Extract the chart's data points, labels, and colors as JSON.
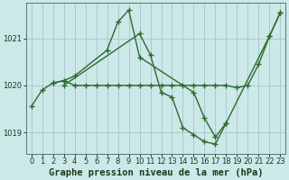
{
  "bg_color": "#cce8e8",
  "grid_color": "#aacccc",
  "line_color": "#2d6a2d",
  "marker": "+",
  "markersize": 5,
  "linewidth": 1.0,
  "title": "Graphe pression niveau de la mer (hPa)",
  "title_fontsize": 7.5,
  "xlim": [
    -0.5,
    23.5
  ],
  "ylim": [
    1018.55,
    1021.75
  ],
  "yticks": [
    1019,
    1020,
    1021
  ],
  "xticks": [
    0,
    1,
    2,
    3,
    4,
    5,
    6,
    7,
    8,
    9,
    10,
    11,
    12,
    13,
    14,
    15,
    16,
    17,
    18,
    19,
    20,
    21,
    22,
    23
  ],
  "tick_fontsize": 6,
  "series": [
    {
      "points": [
        [
          0,
          1019.55
        ],
        [
          1,
          1019.9
        ],
        [
          2,
          1020.05
        ],
        [
          3,
          1020.1
        ],
        [
          4,
          1020.0
        ],
        [
          5,
          1020.0
        ],
        [
          6,
          1020.0
        ],
        [
          7,
          1020.0
        ],
        [
          8,
          1020.0
        ],
        [
          9,
          1020.0
        ],
        [
          10,
          1020.0
        ],
        [
          11,
          1020.0
        ],
        [
          12,
          1020.0
        ],
        [
          13,
          1020.0
        ],
        [
          14,
          1020.0
        ],
        [
          15,
          1020.0
        ],
        [
          16,
          1020.0
        ],
        [
          17,
          1020.0
        ],
        [
          18,
          1020.0
        ],
        [
          19,
          1019.95
        ],
        [
          20,
          1020.0
        ],
        [
          21,
          1020.45
        ],
        [
          22,
          1021.05
        ],
        [
          23,
          1021.55
        ]
      ]
    },
    {
      "points": [
        [
          2,
          1020.05
        ],
        [
          3,
          1020.1
        ],
        [
          4,
          1020.2
        ],
        [
          7,
          1020.75
        ],
        [
          8,
          1021.35
        ],
        [
          9,
          1021.6
        ],
        [
          10,
          1020.6
        ],
        [
          15,
          1019.85
        ],
        [
          16,
          1019.3
        ],
        [
          17,
          1018.9
        ],
        [
          18,
          1019.2
        ],
        [
          22,
          1021.05
        ],
        [
          23,
          1021.55
        ]
      ]
    },
    {
      "points": [
        [
          3,
          1020.0
        ],
        [
          10,
          1021.1
        ],
        [
          11,
          1020.65
        ],
        [
          12,
          1019.85
        ],
        [
          13,
          1019.75
        ],
        [
          14,
          1019.1
        ],
        [
          15,
          1018.95
        ],
        [
          16,
          1018.8
        ],
        [
          17,
          1018.75
        ],
        [
          18,
          1019.2
        ]
      ]
    }
  ]
}
